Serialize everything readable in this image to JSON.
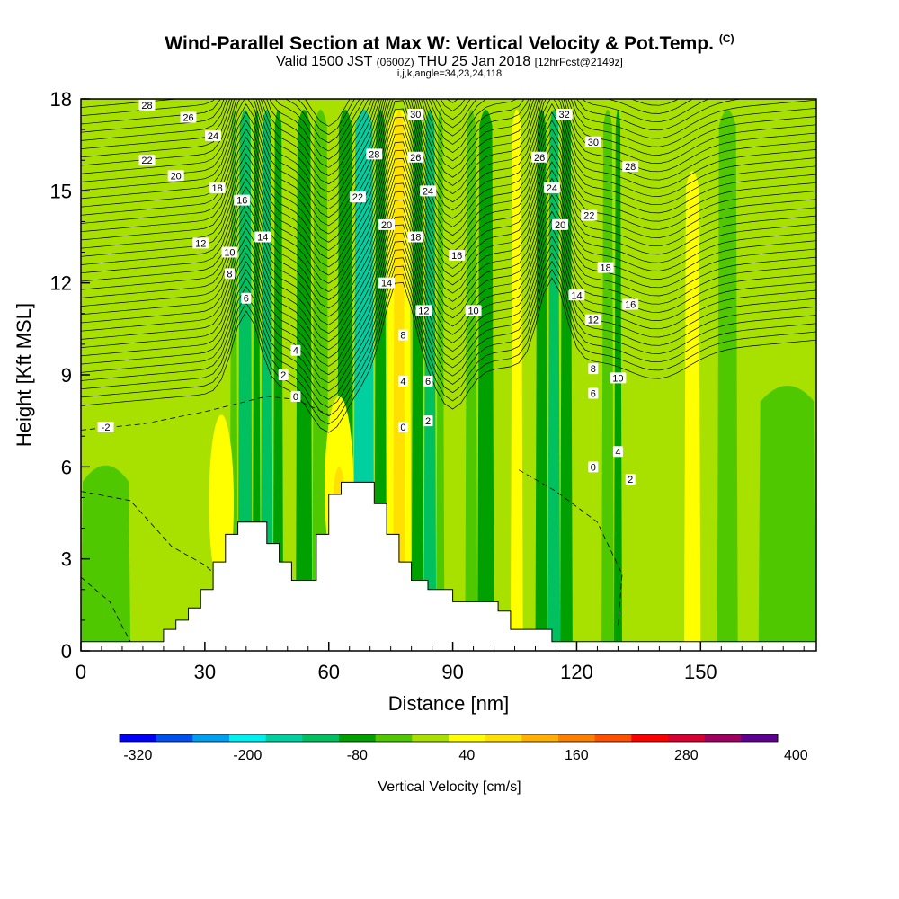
{
  "header": {
    "title": "Wind-Parallel Section at Max W: Vertical Velocity & Pot.Temp.",
    "title_suffix": "(C)",
    "subtitle_valid": "Valid 1500 JST",
    "subtitle_utc": "(0600Z)",
    "subtitle_date": "THU 25 Jan 2018",
    "subtitle_fcst": "[12hrFcst@2149z]",
    "grid_info": "i,j,k,angle=34,23,24,118"
  },
  "chart_data": {
    "type": "heatmap",
    "title": "Wind-Parallel Section at Max W: Vertical Velocity & Pot.Temp.",
    "xlabel": "Distance [nm]",
    "ylabel": "Height [Kft MSL]",
    "xlim": [
      0,
      178
    ],
    "ylim": [
      0,
      18
    ],
    "x_ticks": [
      "0",
      "30",
      "60",
      "90",
      "120",
      "150"
    ],
    "y_ticks": [
      "0",
      "3",
      "6",
      "9",
      "12",
      "15",
      "18"
    ],
    "colorbar": {
      "label": "Vertical Velocity [cm/s]",
      "tick_labels": [
        "-320",
        "-200",
        "-80",
        "40",
        "160",
        "280",
        "400"
      ],
      "min": -340,
      "step": 40,
      "colors": [
        "#0000ff",
        "#0050f0",
        "#00a0f0",
        "#00f0f0",
        "#00d0a0",
        "#00c060",
        "#00a000",
        "#50c800",
        "#a8e000",
        "#ffff00",
        "#ffe000",
        "#ffb000",
        "#ff8000",
        "#ff5000",
        "#ff0000",
        "#d80030",
        "#a00060",
        "#600090"
      ]
    },
    "velocity_field": {
      "background": "#a8e000",
      "columns": [
        {
          "x0": 0,
          "x1": 12,
          "y_top": 6.4,
          "color": "#50c800"
        },
        {
          "x0": 36,
          "x1": 38,
          "y_top": 18,
          "color": "#50c800"
        },
        {
          "x0": 38,
          "x1": 41.5,
          "y_top": 18,
          "color": "#00c060"
        },
        {
          "x0": 41.5,
          "x1": 43.5,
          "y_top": 18,
          "color": "#00a000"
        },
        {
          "x0": 43.5,
          "x1": 46.5,
          "y_top": 18,
          "color": "#00c060"
        },
        {
          "x0": 46.5,
          "x1": 49,
          "y_top": 18,
          "color": "#00a000"
        },
        {
          "x0": 52,
          "x1": 56,
          "y_top": 18,
          "color": "#00a000"
        },
        {
          "x0": 56,
          "x1": 60,
          "y_top": 18,
          "color": "#50c800"
        },
        {
          "x0": 62,
          "x1": 66,
          "y_top": 18,
          "color": "#00a000"
        },
        {
          "x0": 66,
          "x1": 71,
          "y_top": 18,
          "color": "#00d0a0"
        },
        {
          "x0": 71,
          "x1": 74,
          "y_top": 18,
          "color": "#00a000"
        },
        {
          "x0": 74,
          "x1": 80,
          "y_top": 18,
          "color": "#ffff00"
        },
        {
          "x0": 75.5,
          "x1": 78.5,
          "y_top": 18,
          "color": "#ffe000"
        },
        {
          "x0": 80,
          "x1": 83,
          "y_top": 18,
          "color": "#00a000"
        },
        {
          "x0": 83,
          "x1": 86,
          "y_top": 18,
          "color": "#00c060"
        },
        {
          "x0": 86,
          "x1": 88,
          "y_top": 18,
          "color": "#50c800"
        },
        {
          "x0": 93,
          "x1": 96,
          "y_top": 18,
          "color": "#50c800"
        },
        {
          "x0": 96,
          "x1": 100,
          "y_top": 18,
          "color": "#00a000"
        },
        {
          "x0": 104,
          "x1": 107,
          "y_top": 18,
          "color": "#ffff00"
        },
        {
          "x0": 110,
          "x1": 113,
          "y_top": 18,
          "color": "#00a000"
        },
        {
          "x0": 113,
          "x1": 116,
          "y_top": 18,
          "color": "#00c060"
        },
        {
          "x0": 116,
          "x1": 119,
          "y_top": 18,
          "color": "#00a000"
        },
        {
          "x0": 126,
          "x1": 129,
          "y_top": 18,
          "color": "#50c800"
        },
        {
          "x0": 129,
          "x1": 131,
          "y_top": 18,
          "color": "#00a000"
        },
        {
          "x0": 146,
          "x1": 150,
          "y_top": 16,
          "color": "#ffff00"
        },
        {
          "x0": 154,
          "x1": 159,
          "y_top": 18,
          "color": "#50c800"
        },
        {
          "x0": 164,
          "x1": 178,
          "y_top": 9,
          "color": "#50c800"
        }
      ],
      "blobs": [
        {
          "x0": 31,
          "x1": 37,
          "y0": 2,
          "y1": 7.7,
          "color": "#ffff00"
        },
        {
          "x0": 59,
          "x1": 66,
          "y0": 2.3,
          "y1": 8.3,
          "color": "#ffff00"
        },
        {
          "x0": 61,
          "x1": 64,
          "y0": 3.5,
          "y1": 6,
          "color": "#ffe000"
        }
      ]
    },
    "potential_temperature": {
      "units": "C",
      "contour_labels": [
        {
          "text": "28",
          "x": 16,
          "y": 17.8
        },
        {
          "text": "26",
          "x": 26,
          "y": 17.4
        },
        {
          "text": "24",
          "x": 32,
          "y": 16.8
        },
        {
          "text": "22",
          "x": 16,
          "y": 16.0
        },
        {
          "text": "20",
          "x": 23,
          "y": 15.5
        },
        {
          "text": "18",
          "x": 33,
          "y": 15.1
        },
        {
          "text": "16",
          "x": 39,
          "y": 14.7
        },
        {
          "text": "14",
          "x": 44,
          "y": 13.5
        },
        {
          "text": "12",
          "x": 29,
          "y": 13.3
        },
        {
          "text": "10",
          "x": 36,
          "y": 13.0
        },
        {
          "text": "8",
          "x": 36,
          "y": 12.3
        },
        {
          "text": "6",
          "x": 40,
          "y": 11.5
        },
        {
          "text": "4",
          "x": 52,
          "y": 9.8
        },
        {
          "text": "2",
          "x": 49,
          "y": 9.0
        },
        {
          "text": "0",
          "x": 52,
          "y": 8.3
        },
        {
          "text": "-2",
          "x": 6,
          "y": 7.3
        },
        {
          "text": "30",
          "x": 81,
          "y": 17.5
        },
        {
          "text": "28",
          "x": 71,
          "y": 16.2
        },
        {
          "text": "26",
          "x": 81,
          "y": 16.1
        },
        {
          "text": "24",
          "x": 84,
          "y": 15.0
        },
        {
          "text": "22",
          "x": 67,
          "y": 14.8
        },
        {
          "text": "20",
          "x": 74,
          "y": 13.9
        },
        {
          "text": "18",
          "x": 81,
          "y": 13.5
        },
        {
          "text": "16",
          "x": 91,
          "y": 12.9
        },
        {
          "text": "14",
          "x": 74,
          "y": 12.0
        },
        {
          "text": "12",
          "x": 83,
          "y": 11.1
        },
        {
          "text": "10",
          "x": 95,
          "y": 11.1
        },
        {
          "text": "8",
          "x": 78,
          "y": 10.3
        },
        {
          "text": "4",
          "x": 78,
          "y": 8.8
        },
        {
          "text": "6",
          "x": 84,
          "y": 8.8
        },
        {
          "text": "2",
          "x": 84,
          "y": 7.5
        },
        {
          "text": "0",
          "x": 78,
          "y": 7.3
        },
        {
          "text": "32",
          "x": 117,
          "y": 17.5
        },
        {
          "text": "30",
          "x": 124,
          "y": 16.6
        },
        {
          "text": "28",
          "x": 133,
          "y": 15.8
        },
        {
          "text": "26",
          "x": 111,
          "y": 16.1
        },
        {
          "text": "24",
          "x": 114,
          "y": 15.1
        },
        {
          "text": "22",
          "x": 123,
          "y": 14.2
        },
        {
          "text": "20",
          "x": 116,
          "y": 13.9
        },
        {
          "text": "18",
          "x": 127,
          "y": 12.5
        },
        {
          "text": "14",
          "x": 120,
          "y": 11.6
        },
        {
          "text": "16",
          "x": 133,
          "y": 11.3
        },
        {
          "text": "12",
          "x": 124,
          "y": 10.8
        },
        {
          "text": "8",
          "x": 124,
          "y": 9.2
        },
        {
          "text": "10",
          "x": 130,
          "y": 8.9
        },
        {
          "text": "6",
          "x": 124,
          "y": 8.4
        },
        {
          "text": "4",
          "x": 130,
          "y": 6.5
        },
        {
          "text": "0",
          "x": 124,
          "y": 6.0
        },
        {
          "text": "2",
          "x": 133,
          "y": 5.6
        }
      ]
    },
    "terrain_profile": [
      [
        0,
        0.3
      ],
      [
        20,
        0.3
      ],
      [
        20,
        0.7
      ],
      [
        23,
        0.7
      ],
      [
        23,
        1.0
      ],
      [
        26,
        1.0
      ],
      [
        26,
        1.4
      ],
      [
        29,
        1.4
      ],
      [
        29,
        2.0
      ],
      [
        32,
        2.0
      ],
      [
        32,
        2.9
      ],
      [
        35,
        2.9
      ],
      [
        35,
        3.8
      ],
      [
        38,
        3.8
      ],
      [
        38,
        4.2
      ],
      [
        45,
        4.2
      ],
      [
        45,
        3.5
      ],
      [
        48,
        3.5
      ],
      [
        48,
        2.9
      ],
      [
        51,
        2.9
      ],
      [
        51,
        2.3
      ],
      [
        57,
        2.3
      ],
      [
        57,
        3.8
      ],
      [
        60,
        3.8
      ],
      [
        60,
        5.1
      ],
      [
        63,
        5.1
      ],
      [
        63,
        5.5
      ],
      [
        71,
        5.5
      ],
      [
        71,
        4.8
      ],
      [
        74,
        4.8
      ],
      [
        74,
        3.8
      ],
      [
        77,
        3.8
      ],
      [
        77,
        2.9
      ],
      [
        80,
        2.9
      ],
      [
        80,
        2.3
      ],
      [
        84,
        2.3
      ],
      [
        84,
        2.0
      ],
      [
        90,
        2.0
      ],
      [
        90,
        1.6
      ],
      [
        101,
        1.6
      ],
      [
        101,
        1.3
      ],
      [
        104,
        1.3
      ],
      [
        104,
        0.7
      ],
      [
        114,
        0.7
      ],
      [
        114,
        0.3
      ],
      [
        178,
        0.3
      ]
    ]
  }
}
